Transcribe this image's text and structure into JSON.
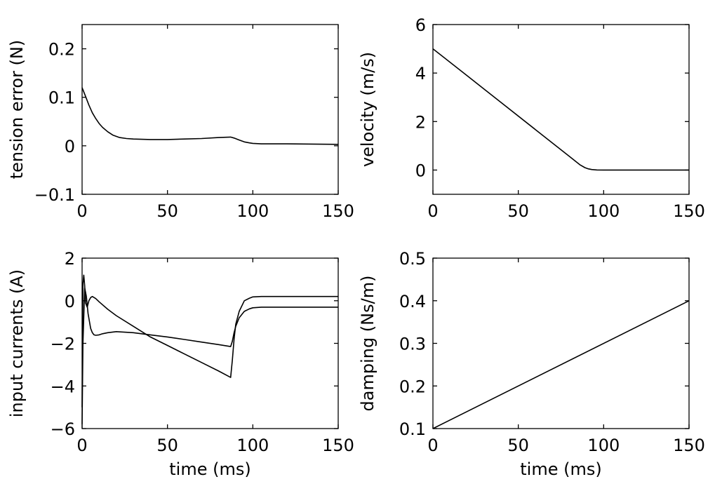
{
  "chart_data": [
    {
      "type": "line",
      "xlabel": "",
      "ylabel": "tension error (N)",
      "xlim": [
        0,
        150
      ],
      "ylim": [
        -0.1,
        0.25
      ],
      "xticks": [
        0,
        50,
        100,
        150
      ],
      "xtick_labels": [
        "0",
        "50",
        "100",
        "150"
      ],
      "yticks": [
        -0.1,
        0,
        0.1,
        0.2
      ],
      "ytick_labels": [
        "−0.1",
        "0",
        "0.1",
        "0.2"
      ],
      "series": [
        {
          "x": [
            0,
            2,
            4,
            6,
            8,
            10,
            12,
            15,
            18,
            22,
            26,
            30,
            40,
            50,
            60,
            70,
            80,
            87,
            89,
            92,
            95,
            98,
            100,
            105,
            120,
            150
          ],
          "y": [
            0.12,
            0.102,
            0.084,
            0.068,
            0.056,
            0.046,
            0.038,
            0.029,
            0.022,
            0.017,
            0.015,
            0.014,
            0.013,
            0.013,
            0.014,
            0.015,
            0.017,
            0.018,
            0.016,
            0.012,
            0.008,
            0.006,
            0.005,
            0.004,
            0.004,
            0.003
          ]
        }
      ]
    },
    {
      "type": "line",
      "xlabel": "",
      "ylabel": "velocity (m/s)",
      "xlim": [
        0,
        150
      ],
      "ylim": [
        -1,
        6
      ],
      "xticks": [
        0,
        50,
        100,
        150
      ],
      "xtick_labels": [
        "0",
        "50",
        "100",
        "150"
      ],
      "yticks": [
        0,
        2,
        4,
        6
      ],
      "ytick_labels": [
        "0",
        "2",
        "4",
        "6"
      ],
      "series": [
        {
          "x": [
            0,
            20,
            40,
            60,
            80,
            86,
            89,
            91,
            93,
            96,
            100,
            110,
            150
          ],
          "y": [
            5,
            3.89,
            2.78,
            1.67,
            0.56,
            0.22,
            0.1,
            0.05,
            0.02,
            0.005,
            0,
            0,
            0
          ]
        }
      ]
    },
    {
      "type": "line",
      "xlabel": "time (ms)",
      "ylabel": "input currents (A)",
      "xlim": [
        0,
        150
      ],
      "ylim": [
        -6,
        2
      ],
      "xticks": [
        0,
        50,
        100,
        150
      ],
      "xtick_labels": [
        "0",
        "50",
        "100",
        "150"
      ],
      "yticks": [
        -6,
        -4,
        -2,
        0,
        2
      ],
      "ytick_labels": [
        "−6",
        "−4",
        "−2",
        "0",
        "2"
      ],
      "series": [
        {
          "x": [
            0,
            0.5,
            1.5,
            2.5,
            3.5,
            5,
            6,
            7,
            8,
            10,
            12,
            15,
            20,
            30,
            40,
            50,
            60,
            70,
            80,
            87,
            88,
            89,
            90,
            92,
            95,
            98,
            100,
            105,
            110,
            120,
            150
          ],
          "y": [
            -5.8,
            -2,
            0.6,
            0.2,
            -0.6,
            -1.3,
            -1.5,
            -1.6,
            -1.62,
            -1.6,
            -1.55,
            -1.5,
            -1.45,
            -1.5,
            -1.6,
            -1.7,
            -1.82,
            -1.94,
            -2.06,
            -2.15,
            -1.9,
            -1.5,
            -1.2,
            -0.8,
            -0.5,
            -0.38,
            -0.33,
            -0.3,
            -0.3,
            -0.3,
            -0.3
          ]
        },
        {
          "x": [
            0,
            0.5,
            1,
            1.5,
            2,
            3,
            4,
            5,
            6,
            8,
            10,
            15,
            20,
            30,
            40,
            50,
            60,
            70,
            80,
            87,
            88,
            89,
            90,
            92,
            95,
            98,
            100,
            105,
            110,
            120,
            150
          ],
          "y": [
            -5.0,
            0.8,
            1.2,
            0.7,
            -0.1,
            -0.3,
            0.0,
            0.15,
            0.2,
            0.1,
            -0.05,
            -0.4,
            -0.7,
            -1.2,
            -1.7,
            -2.1,
            -2.5,
            -2.9,
            -3.3,
            -3.6,
            -2.8,
            -1.8,
            -1.1,
            -0.5,
            0.0,
            0.12,
            0.18,
            0.2,
            0.2,
            0.2,
            0.2
          ]
        }
      ]
    },
    {
      "type": "line",
      "xlabel": "time (ms)",
      "ylabel": "damping (Ns/m)",
      "xlim": [
        0,
        150
      ],
      "ylim": [
        0.1,
        0.5
      ],
      "xticks": [
        0,
        50,
        100,
        150
      ],
      "xtick_labels": [
        "0",
        "50",
        "100",
        "150"
      ],
      "yticks": [
        0.1,
        0.2,
        0.3,
        0.4,
        0.5
      ],
      "ytick_labels": [
        "0.1",
        "0.2",
        "0.3",
        "0.4",
        "0.5"
      ],
      "series": [
        {
          "x": [
            0,
            150
          ],
          "y": [
            0.1,
            0.4
          ]
        }
      ]
    }
  ]
}
